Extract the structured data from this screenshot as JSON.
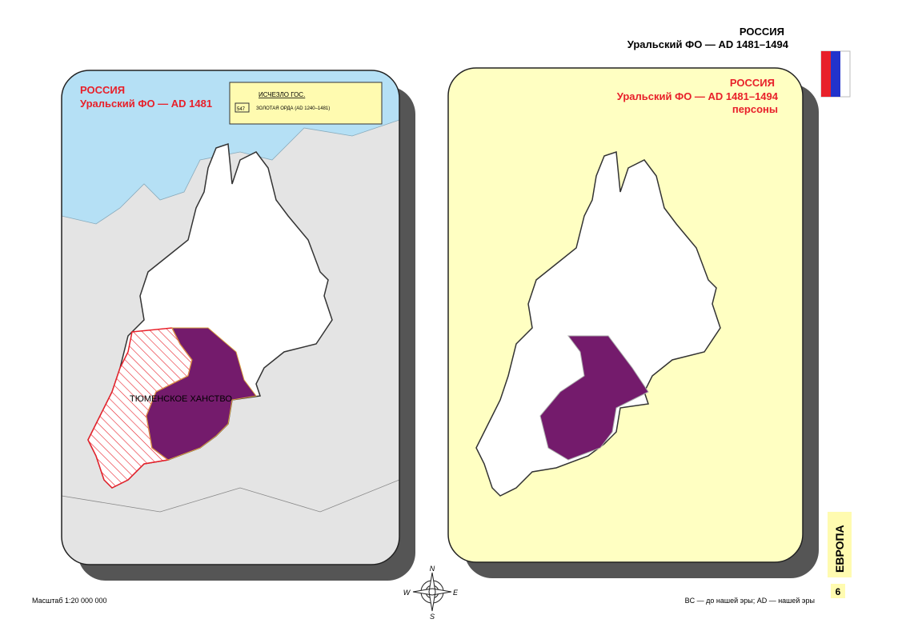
{
  "header": {
    "title": "РОССИЯ",
    "subtitle": "Уральский ФО — AD 1481–1494"
  },
  "left_panel": {
    "title": "РОССИЯ",
    "subtitle": "Уральский ФО — AD 1481",
    "legend": {
      "title": "ИСЧЕЗЛО ГОС.",
      "code": "547",
      "item": "ЗОЛОТАЯ ОРДА (AD 1240–1481)"
    },
    "region_label": "ТЮМЕНСКОЕ ХАНСТВО"
  },
  "right_panel": {
    "title": "РОССИЯ",
    "subtitle": "Уральский ФО — AD 1481–1494",
    "note": "персоны"
  },
  "side_tab": {
    "label": "ЕВРОПА",
    "page": "6"
  },
  "compass": {
    "n": "N",
    "w": "W",
    "e": "E",
    "s": "S"
  },
  "footer": {
    "scale": "Масштаб 1:20 000 000",
    "legend_note": "BC — до нашей эры; AD — нашей эры"
  }
}
